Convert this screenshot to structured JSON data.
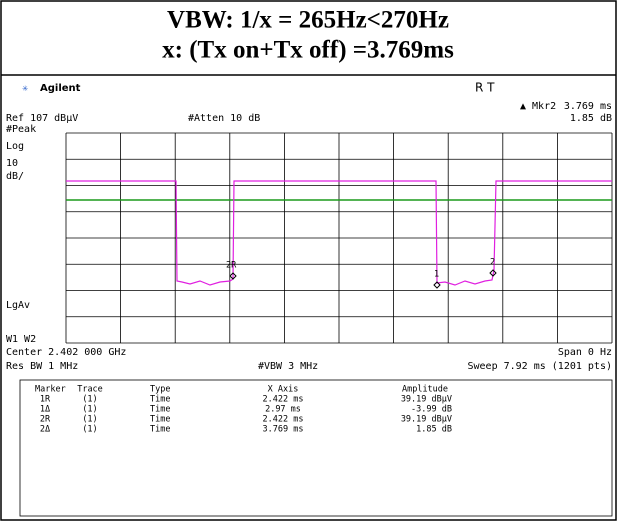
{
  "header": {
    "title": [
      "VBW: 1/x = 265Hz<270Hz",
      "x: (Tx on+Tx off) =3.769ms"
    ]
  },
  "instrument": {
    "brand": "Agilent",
    "mode": "R   T",
    "marker": {
      "name": "▲ Mkr2",
      "x": "3.769 ms",
      "y": "1.85 dB"
    },
    "ref": "Ref 107 dBµV",
    "atten": "#Atten 10 dB",
    "side_labels": [
      "#Peak",
      "Log",
      "10",
      "dB/",
      "LgAv",
      "W1  W2"
    ],
    "plot_markers": [
      "2R",
      "1",
      "2"
    ],
    "center": "Center 2.402 000 GHz",
    "span": "Span 0 Hz",
    "rbw": "Res BW 1 MHz",
    "vbw": "#VBW 3 MHz",
    "sweep": "Sweep 7.92 ms (1201 pts)"
  },
  "table": {
    "headers": [
      "Marker",
      "Trace",
      "Type",
      "X Axis",
      "Amplitude"
    ],
    "rows": [
      [
        "1R",
        "(1)",
        "Time",
        "2.422 ms",
        "39.19 dBµV"
      ],
      [
        "1Δ",
        "(1)",
        "Time",
        "2.97 ms",
        "-3.99 dB"
      ],
      [
        "2R",
        "(1)",
        "Time",
        "2.422 ms",
        "39.19 dBµV"
      ],
      [
        "2Δ",
        "(1)",
        "Time",
        "3.769 ms",
        "1.85 dB"
      ]
    ]
  }
}
